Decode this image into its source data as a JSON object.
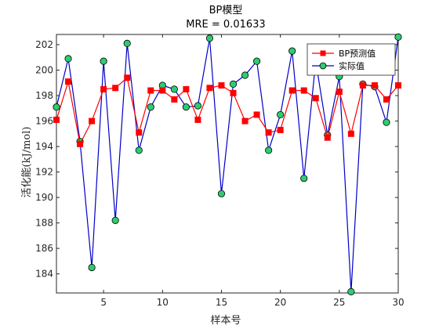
{
  "chart_data": {
    "type": "line",
    "title": "BP模型",
    "subtitle": "MRE = 0.01633",
    "xlabel": "样本号",
    "ylabel": "活化能(kJ/mol)",
    "xlim": [
      1,
      30
    ],
    "ylim": [
      182.5,
      202.8
    ],
    "xticks": [
      5,
      10,
      15,
      20,
      25,
      30
    ],
    "yticks": [
      184,
      186,
      188,
      190,
      192,
      194,
      196,
      198,
      200,
      202
    ],
    "grid": false,
    "legend_position": "top-right",
    "x": [
      1,
      2,
      3,
      4,
      5,
      6,
      7,
      8,
      9,
      10,
      11,
      12,
      13,
      14,
      15,
      16,
      17,
      18,
      19,
      20,
      21,
      22,
      23,
      24,
      25,
      26,
      27,
      28,
      29,
      30
    ],
    "series": [
      {
        "name": "BP预测值",
        "color": "#ff0000",
        "marker": "square",
        "marker_color": "#ff0000",
        "values": [
          196.1,
          199.1,
          194.2,
          196.0,
          198.5,
          198.6,
          199.4,
          195.1,
          198.4,
          198.4,
          197.7,
          198.5,
          196.1,
          198.6,
          198.8,
          198.2,
          196.0,
          196.5,
          195.1,
          195.3,
          198.4,
          198.4,
          197.8,
          194.7,
          198.3,
          195.0,
          198.8,
          198.8,
          197.7,
          198.8
        ]
      },
      {
        "name": "实际值",
        "color": "#0000c8",
        "marker": "circle",
        "marker_color": "#2ecc71",
        "values": [
          197.1,
          200.9,
          194.4,
          184.5,
          200.7,
          188.2,
          202.1,
          193.7,
          197.1,
          198.8,
          198.5,
          197.1,
          197.2,
          202.5,
          190.3,
          198.9,
          199.6,
          200.7,
          193.7,
          196.5,
          201.5,
          191.5,
          200.7,
          194.9,
          199.5,
          182.6,
          198.9,
          198.7,
          195.9,
          202.6
        ]
      }
    ]
  }
}
